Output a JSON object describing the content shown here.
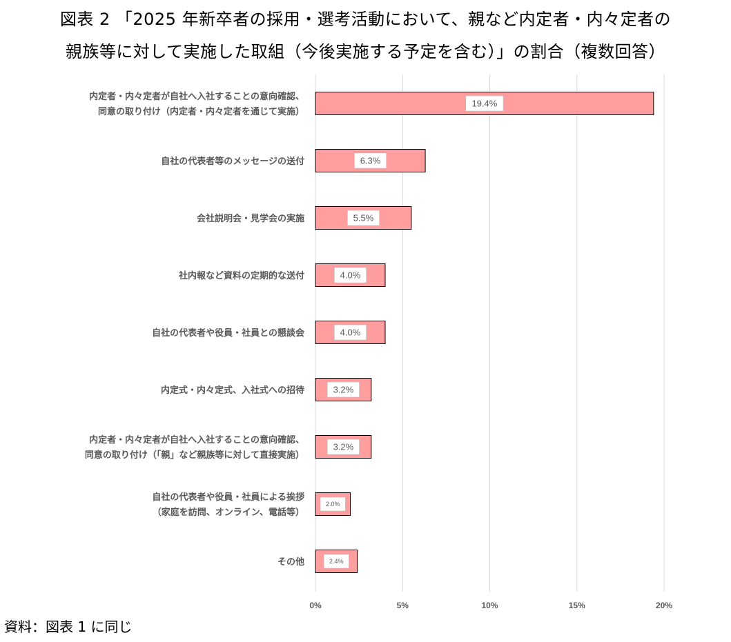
{
  "title_line1": "図表 2 「2025 年新卒者の採用・選考活動において、親など内定者・内々定者の",
  "title_line2": "親族等に対して実施した取組（今後実施する予定を含む）」の割合（複数回答）",
  "source": "資料：図表 1 に同じ",
  "colors": {
    "bar": "#ff9e9e",
    "bar_stroke": "#000000",
    "grid": "#d9d9d9",
    "label_text": "#595959"
  },
  "chart_data": {
    "type": "bar",
    "orientation": "horizontal",
    "categories": [
      [
        "内定者・内々定者が自社へ入社することの意向確認、",
        "同意の取り付け（内定者・内々定者を通じて実施）"
      ],
      [
        "自社の代表者等のメッセージの送付"
      ],
      [
        "会社説明会・見学会の実施"
      ],
      [
        "社内報など資料の定期的な送付"
      ],
      [
        "自社の代表者や役員・社員との懇談会"
      ],
      [
        "内定式・内々定式、入社式への招待"
      ],
      [
        "内定者・内々定者が自社へ入社することの意向確認、",
        "同意の取り付け（「親」など親族等に対して直接実施）"
      ],
      [
        "自社の代表者や役員・社員による挨拶",
        "（家庭を訪問、オンライン、電話等）"
      ],
      [
        "その他"
      ]
    ],
    "values": [
      19.4,
      6.3,
      5.5,
      4.0,
      4.0,
      3.2,
      3.2,
      2.0,
      2.4
    ],
    "data_labels": [
      "19.4%",
      "6.3%",
      "5.5%",
      "4.0%",
      "4.0%",
      "3.2%",
      "3.2%",
      "2.0%",
      "2.4%"
    ],
    "x_ticks": [
      0,
      5,
      10,
      15,
      20
    ],
    "x_tick_labels": [
      "0%",
      "5%",
      "10%",
      "15%",
      "20%"
    ],
    "xlim": [
      0,
      20
    ],
    "grid": true
  }
}
